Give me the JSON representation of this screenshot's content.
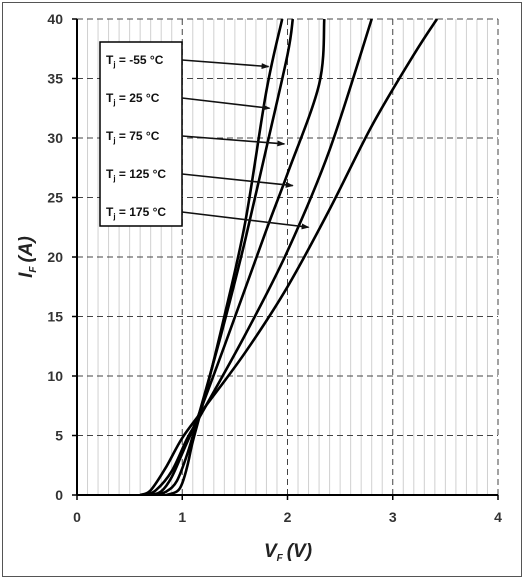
{
  "chart_data": {
    "type": "line",
    "xlabel": "V",
    "xlabel_sub": "F",
    "xlabel_unit": "(V)",
    "ylabel": "I",
    "ylabel_sub": "F",
    "ylabel_unit": "(A)",
    "xlim": [
      0,
      4
    ],
    "ylim": [
      0,
      40
    ],
    "x_ticks": [
      0,
      1,
      2,
      3,
      4
    ],
    "y_ticks": [
      0,
      5,
      10,
      15,
      20,
      25,
      30,
      35,
      40
    ],
    "grid": {
      "major": "dashed",
      "minor_vertical": "solid-light"
    },
    "legend_placement": "top-left",
    "series": [
      {
        "name": "Tⱼ = -55 °C",
        "label_prefix": "T",
        "label_sub": "j",
        "label_rest": " = -55 °C",
        "points": [
          [
            0.85,
            0
          ],
          [
            0.95,
            0.3
          ],
          [
            1.0,
            1.0
          ],
          [
            1.05,
            2.5
          ],
          [
            1.1,
            4.5
          ],
          [
            1.2,
            7.8
          ],
          [
            1.4,
            15
          ],
          [
            1.6,
            23
          ],
          [
            1.8,
            34
          ],
          [
            1.95,
            40
          ]
        ],
        "arrow_to": [
          1.82,
          36
        ]
      },
      {
        "name": "Tⱼ = 25 °C",
        "label_prefix": "T",
        "label_sub": "j",
        "label_rest": " = 25 °C",
        "points": [
          [
            0.75,
            0
          ],
          [
            0.85,
            0.3
          ],
          [
            0.95,
            1.2
          ],
          [
            1.05,
            3.5
          ],
          [
            1.15,
            6.5
          ],
          [
            1.4,
            14.5
          ],
          [
            1.6,
            21.5
          ],
          [
            1.8,
            29.2
          ],
          [
            2.0,
            37
          ],
          [
            2.05,
            40
          ]
        ],
        "arrow_to": [
          1.83,
          32.5
        ]
      },
      {
        "name": "Tⱼ = 75 °C",
        "label_prefix": "T",
        "label_sub": "j",
        "label_rest": " = 75 °C",
        "points": [
          [
            0.7,
            0
          ],
          [
            0.8,
            0.3
          ],
          [
            0.9,
            1.5
          ],
          [
            1.0,
            3.5
          ],
          [
            1.15,
            6.6
          ],
          [
            1.4,
            12.5
          ],
          [
            1.8,
            22.3
          ],
          [
            2.0,
            27
          ],
          [
            2.3,
            34.5
          ],
          [
            2.35,
            40
          ]
        ],
        "arrow_to": [
          1.97,
          29.5
        ]
      },
      {
        "name": "Tⱼ = 125 °C",
        "label_prefix": "T",
        "label_sub": "j",
        "label_rest": " = 125 °C",
        "points": [
          [
            0.65,
            0
          ],
          [
            0.75,
            0.4
          ],
          [
            0.9,
            2.0
          ],
          [
            1.05,
            4.8
          ],
          [
            1.2,
            7.1
          ],
          [
            1.6,
            13.5
          ],
          [
            2.0,
            20.5
          ],
          [
            2.4,
            29
          ],
          [
            2.8,
            40
          ]
        ],
        "arrow_to": [
          2.05,
          26
        ]
      },
      {
        "name": "Tⱼ = 175 °C",
        "label_prefix": "T",
        "label_sub": "j",
        "label_rest": " = 175 °C",
        "points": [
          [
            0.6,
            0
          ],
          [
            0.7,
            0.4
          ],
          [
            0.85,
            2.4
          ],
          [
            1.0,
            4.8
          ],
          [
            1.2,
            7.2
          ],
          [
            1.6,
            12
          ],
          [
            2.0,
            17.5
          ],
          [
            2.4,
            24
          ],
          [
            2.8,
            31
          ],
          [
            3.2,
            37
          ],
          [
            3.42,
            40
          ]
        ],
        "arrow_to": [
          2.2,
          22.5
        ]
      }
    ]
  }
}
